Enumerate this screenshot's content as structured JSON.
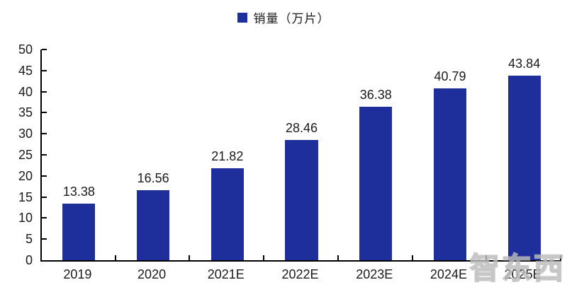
{
  "chart_data": {
    "type": "bar",
    "title": "",
    "legend": "销量（万片）",
    "categories": [
      "2019",
      "2020",
      "2021E",
      "2022E",
      "2023E",
      "2024E",
      "2025E"
    ],
    "values": [
      13.38,
      16.56,
      21.82,
      28.46,
      36.38,
      40.79,
      43.84
    ],
    "value_labels": [
      "13.38",
      "16.56",
      "21.82",
      "28.46",
      "36.38",
      "40.79",
      "43.84"
    ],
    "ylim": [
      0,
      50
    ],
    "ytick_step": 5,
    "ytick_labels": [
      "0",
      "5",
      "10",
      "15",
      "20",
      "25",
      "30",
      "35",
      "40",
      "45",
      "50"
    ],
    "grid": false,
    "legend_position": "top-center",
    "bar_color": "#1e2f9b",
    "axis_color": "#000000",
    "label_color": "#1a1a1a"
  },
  "watermark": {
    "text": "智东西",
    "color": "#c9c9c9"
  }
}
